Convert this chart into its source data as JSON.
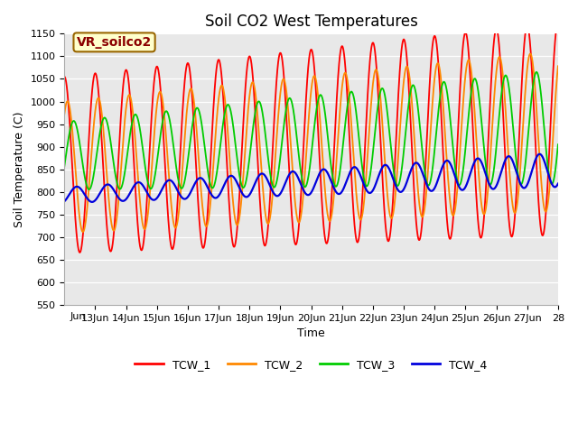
{
  "title": "Soil CO2 West Temperatures",
  "xlabel": "Time",
  "ylabel": "Soil Temperature (C)",
  "ylim": [
    550,
    1150
  ],
  "xlim_days": [
    12.0,
    28.0
  ],
  "annotation_text": "VR_soilco2",
  "legend_labels": [
    "TCW_1",
    "TCW_2",
    "TCW_3",
    "TCW_4"
  ],
  "line_colors": [
    "#ff0000",
    "#ff8800",
    "#00cc00",
    "#0000dd"
  ],
  "background_color": "#e8e8e8",
  "xtick_positions": [
    13,
    14,
    15,
    16,
    17,
    18,
    19,
    20,
    21,
    22,
    23,
    24,
    25,
    26,
    27,
    28
  ],
  "xtick_labels": [
    "13Jun",
    "14Jun",
    "15Jun",
    "16Jun",
    "17Jun",
    "18Jun",
    "19Jun",
    "20Jun",
    "21Jun",
    "22Jun",
    "23Jun",
    "24Jun",
    "25Jun",
    "26Jun",
    "27Jun",
    "28"
  ],
  "title_fontsize": 12,
  "axis_label_fontsize": 9,
  "tick_fontsize": 8,
  "legend_fontsize": 9,
  "annotation_fontsize": 10
}
